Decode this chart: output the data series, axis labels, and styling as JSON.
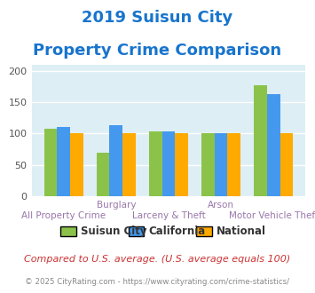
{
  "title_line1": "2019 Suisun City",
  "title_line2": "Property Crime Comparison",
  "title_color": "#1874cd",
  "groups": [
    {
      "suisun": 107,
      "california": 110,
      "national": 100
    },
    {
      "suisun": 69,
      "california": 113,
      "national": 100
    },
    {
      "suisun": 104,
      "california": 103,
      "national": 100
    },
    {
      "suisun": 100,
      "california": 100,
      "national": 100
    },
    {
      "suisun": 177,
      "california": 163,
      "national": 100
    }
  ],
  "group_top_labels": [
    "",
    "Burglary",
    "",
    "Arson",
    ""
  ],
  "group_bottom_labels": [
    "All Property Crime",
    "",
    "Larceny & Theft",
    "",
    "Motor Vehicle Theft"
  ],
  "color_suisun": "#8bc34a",
  "color_california": "#4499ee",
  "color_national": "#ffaa00",
  "background_color": "#ddeef5",
  "ylim": [
    0,
    210
  ],
  "yticks": [
    0,
    50,
    100,
    150,
    200
  ],
  "legend_labels": [
    "Suisun City",
    "California",
    "National"
  ],
  "footnote1": "Compared to U.S. average. (U.S. average equals 100)",
  "footnote2": "© 2025 CityRating.com - https://www.cityrating.com/crime-statistics/",
  "footnote1_color": "#cc3333",
  "footnote2_color": "#888888",
  "bar_width": 0.25,
  "grid_color": "#ffffff",
  "label_color": "#9977aa"
}
